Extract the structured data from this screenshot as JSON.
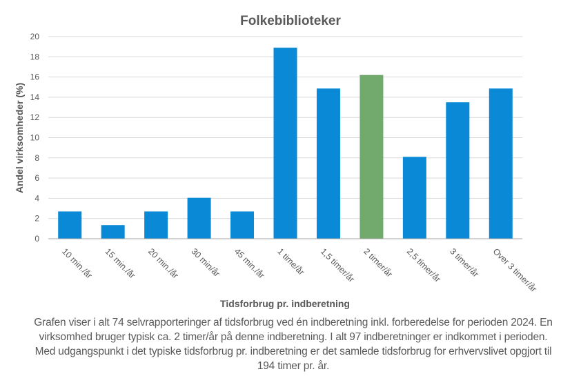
{
  "chart_data": {
    "type": "bar",
    "title": "Folkebiblioteker",
    "xlabel": "Tidsforbrug pr. indberetning",
    "ylabel": "Andel virksomheder  (%)",
    "ylim": [
      0,
      20
    ],
    "yticks": [
      0,
      2,
      4,
      6,
      8,
      10,
      12,
      14,
      16,
      18,
      20
    ],
    "grid": true,
    "categories": [
      "10 min./år",
      "15 min./år",
      "20 min./år",
      "30 min/år",
      "45 min./år",
      "1 time/år",
      "1,5 timer/år",
      "2 timer/år",
      "2,5 timer/år",
      "3 timer/år",
      "Over 3 timer/år"
    ],
    "values": [
      2.7,
      1.35,
      2.7,
      4.05,
      2.7,
      18.9,
      14.86,
      16.2,
      8.1,
      13.5,
      14.86
    ],
    "highlight_index": 7,
    "colors": {
      "bar": "#0A8AD6",
      "highlight": "#72AA6E",
      "grid": "#D9D9D9",
      "axis": "#A6A6A6",
      "text": "#595959"
    }
  },
  "caption": "Grafen viser i alt 74 selvrapporteringer af tidsforbrug ved én indberetning inkl. forberedelse for perioden 2024. En virksomhed bruger typisk ca. 2 timer/år på denne indberetning. I alt 97 indberetninger er indkommet i perioden. Med udgangspunkt i det typiske tidsforbrug pr. indberetning er det samlede tidsforbrug for erhvervslivet opgjort til 194 timer pr. år."
}
